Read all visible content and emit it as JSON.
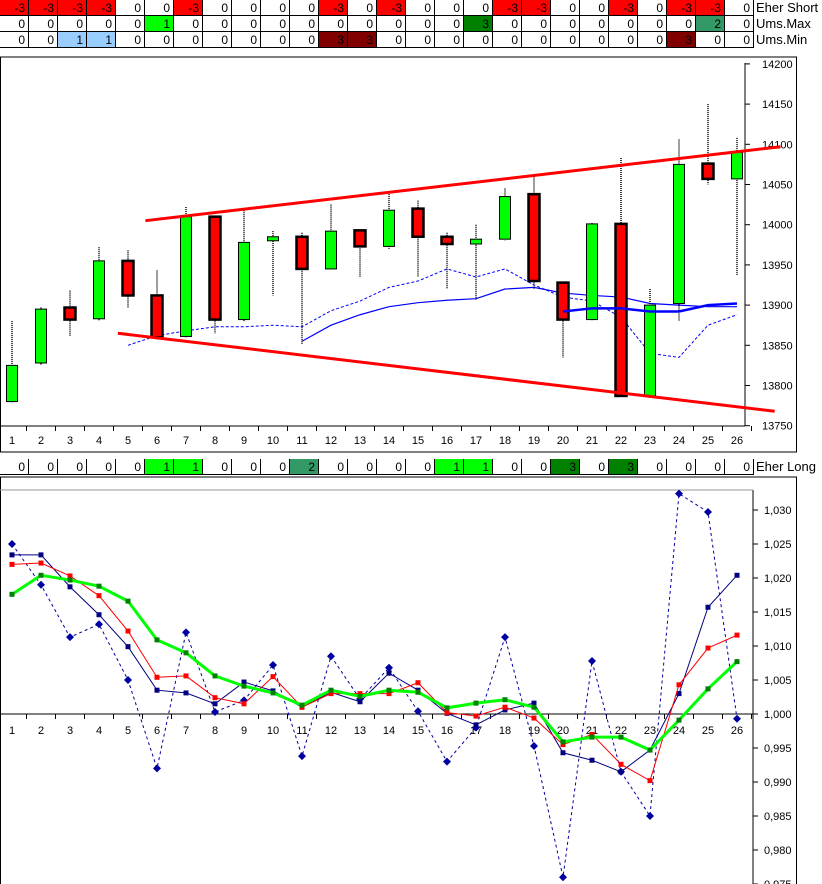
{
  "indicator_rows": [
    {
      "label": "Eher Short",
      "values": [
        -3,
        -3,
        -3,
        -3,
        0,
        0,
        -3,
        0,
        0,
        0,
        0,
        -3,
        0,
        -3,
        0,
        0,
        0,
        -3,
        -3,
        0,
        0,
        -3,
        0,
        -3,
        -3,
        0
      ],
      "colors": {
        "-3": "#ff0000"
      }
    },
    {
      "label": "Ums.Max",
      "values": [
        0,
        0,
        0,
        0,
        0,
        1,
        0,
        0,
        0,
        0,
        0,
        0,
        0,
        0,
        0,
        0,
        3,
        0,
        0,
        0,
        0,
        0,
        0,
        0,
        2,
        0
      ],
      "colors": {
        "1": "#00ff00",
        "2": "#339966",
        "3": "#008000"
      }
    },
    {
      "label": "Ums.Min",
      "values": [
        0,
        0,
        1,
        1,
        0,
        0,
        0,
        0,
        0,
        0,
        0,
        3,
        3,
        0,
        0,
        0,
        0,
        0,
        0,
        0,
        0,
        0,
        0,
        3,
        0,
        0
      ],
      "colors": {
        "1": "#99ccff",
        "3": "#800000"
      }
    }
  ],
  "long_row": {
    "label": "Eher Long",
    "values": [
      0,
      0,
      0,
      0,
      0,
      1,
      1,
      0,
      0,
      0,
      2,
      0,
      0,
      0,
      0,
      1,
      1,
      0,
      0,
      3,
      0,
      3,
      0,
      0,
      0,
      0
    ],
    "colors": {
      "1": "#00ff00",
      "2": "#339966",
      "3": "#008000"
    }
  },
  "chart_data": [
    {
      "type": "candlestick",
      "x": [
        1,
        2,
        3,
        4,
        5,
        6,
        7,
        8,
        9,
        10,
        11,
        12,
        13,
        14,
        15,
        16,
        17,
        18,
        19,
        20,
        21,
        22,
        23,
        24,
        25,
        26
      ],
      "x_tick_labels": [
        "1",
        "2",
        "3",
        "4",
        "5",
        "6",
        "7",
        "8",
        "9",
        "10",
        "11",
        "12",
        "13",
        "14",
        "15",
        "16",
        "17",
        "18",
        "19",
        "20",
        "21",
        "22",
        "23",
        "24",
        "25",
        "26"
      ],
      "ylim": [
        13750,
        14200
      ],
      "y_ticks": [
        13750,
        13800,
        13850,
        13900,
        13950,
        14000,
        14050,
        14100,
        14150,
        14200
      ],
      "y_tick_labels": [
        "13750",
        "13800",
        "13850",
        "13900",
        "13950",
        "14000",
        "14050",
        "14100",
        "14150",
        "14200"
      ],
      "open": [
        13780,
        13828,
        13897,
        13883,
        13955,
        13912,
        13861,
        14010,
        13882,
        13980,
        13985,
        13945,
        13993,
        13973,
        14020,
        13985,
        13976,
        13982,
        14038,
        13928,
        13882,
        14001,
        13787,
        13902,
        14076,
        14057
      ],
      "close": [
        13825,
        13895,
        13882,
        13955,
        13912,
        13860,
        14010,
        13882,
        13978,
        13985,
        13945,
        13992,
        13973,
        14018,
        13985,
        13976,
        13982,
        14035,
        13930,
        13882,
        14001,
        13787,
        13900,
        14075,
        14057,
        14090
      ],
      "high": [
        13880,
        13897,
        13918,
        13972,
        13968,
        13943,
        14022,
        14010,
        14018,
        13992,
        13990,
        14025,
        13993,
        14038,
        14030,
        13990,
        14000,
        14045,
        14060,
        13928,
        14002,
        14083,
        13920,
        14106,
        14150,
        14108
      ],
      "low": [
        13778,
        13826,
        13862,
        13880,
        13897,
        13857,
        13860,
        13865,
        13880,
        13912,
        13852,
        13945,
        13935,
        13970,
        13935,
        13920,
        13907,
        13980,
        13920,
        13835,
        13880,
        13785,
        13785,
        13880,
        14050,
        13937
      ],
      "ma_dashed": {
        "x": [
          5,
          6,
          7,
          8,
          9,
          10,
          11,
          12,
          13,
          14,
          15,
          16,
          17,
          18,
          19,
          20,
          21,
          22,
          23,
          24,
          25,
          26
        ],
        "values": [
          13850,
          13862,
          13868,
          13873,
          13873,
          13875,
          13873,
          13893,
          13905,
          13922,
          13930,
          13945,
          13935,
          13945,
          13925,
          13910,
          13905,
          13885,
          13840,
          13835,
          13875,
          13888
        ],
        "color": "#0000ff"
      },
      "ma_solid": {
        "x": [
          11,
          12,
          13,
          14,
          15,
          16,
          17,
          18,
          19,
          20,
          21,
          22,
          23,
          24,
          25,
          26
        ],
        "values": [
          13855,
          13875,
          13888,
          13898,
          13903,
          13906,
          13908,
          13920,
          13922,
          13915,
          13912,
          13910,
          13902,
          13900,
          13898,
          13898
        ],
        "color": "#0000ff"
      },
      "ma_thick": {
        "x": [
          20,
          21,
          22,
          23,
          24,
          25,
          26
        ],
        "values": [
          13892,
          13896,
          13896,
          13892,
          13892,
          13900,
          13902
        ],
        "color": "#0000ff"
      },
      "trend_upper": {
        "x": [
          5.6,
          27.5
        ],
        "values": [
          14005,
          14097
        ],
        "color": "#ff0000"
      },
      "trend_lower": {
        "x": [
          4.65,
          27.3
        ],
        "values": [
          13865,
          13768
        ],
        "color": "#ff0000"
      }
    },
    {
      "type": "line",
      "x": [
        1,
        2,
        3,
        4,
        5,
        6,
        7,
        8,
        9,
        10,
        11,
        12,
        13,
        14,
        15,
        16,
        17,
        18,
        19,
        20,
        21,
        22,
        23,
        24,
        25,
        26
      ],
      "x_tick_labels": [
        "1",
        "2",
        "3",
        "4",
        "5",
        "6",
        "7",
        "8",
        "9",
        "10",
        "11",
        "12",
        "13",
        "14",
        "15",
        "16",
        "17",
        "18",
        "19",
        "20",
        "21",
        "22",
        "23",
        "24",
        "25",
        "26"
      ],
      "ylim": [
        0.975,
        1.032
      ],
      "y_ticks": [
        0.975,
        0.98,
        0.985,
        0.99,
        0.995,
        1.0,
        1.005,
        1.01,
        1.015,
        1.02,
        1.025,
        1.03
      ],
      "y_tick_labels": [
        "0,975",
        "0,980",
        "0,985",
        "0,990",
        "0,995",
        "1,000",
        "1,005",
        "1,010",
        "1,015",
        "1,020",
        "1,025",
        "1,030"
      ],
      "series": [
        {
          "name": "dashed-diamond",
          "color": "#0000a0",
          "values": [
            1.025,
            1.019,
            1.0113,
            1.0132,
            1.005,
            0.992,
            1.012,
            1.0003,
            1.002,
            1.0072,
            0.9938,
            1.0085,
            1.0022,
            1.0068,
            1.0004,
            0.993,
            0.998,
            1.0113,
            0.9953,
            0.976,
            1.0078,
            0.9915,
            0.985,
            1.0324,
            1.0297,
            0.9993
          ]
        },
        {
          "name": "navy-square",
          "color": "#000080",
          "values": [
            1.0234,
            1.0234,
            1.0187,
            1.0146,
            1.0099,
            1.0035,
            1.0031,
            1.0015,
            1.0047,
            1.0034,
            1.001,
            1.0032,
            1.0018,
            1.006,
            1.0035,
            1.0001,
            0.9984,
            1.0006,
            1.0016,
            0.9943,
            0.9932,
            0.9915,
            0.9947,
            1.003,
            1.0157,
            1.0204
          ]
        },
        {
          "name": "red-square",
          "color": "#ff0000",
          "values": [
            1.022,
            1.0222,
            1.0203,
            1.0174,
            1.0122,
            1.0054,
            1.0056,
            1.0024,
            1.0015,
            1.0055,
            1.001,
            1.003,
            1.003,
            1.003,
            1.0046,
            1.0002,
            0.9997,
            1.001,
            0.9994,
            0.9955,
            0.997,
            0.9926,
            0.9902,
            1.0043,
            1.0097,
            1.0116
          ]
        },
        {
          "name": "green-thick",
          "color": "#00ff00",
          "values": [
            1.0176,
            1.0204,
            1.0197,
            1.0188,
            1.0166,
            1.0109,
            1.009,
            1.0056,
            1.0041,
            1.0031,
            1.0013,
            1.0035,
            1.0026,
            1.0035,
            1.0032,
            1.0009,
            1.0016,
            1.0021,
            1.001,
            0.9959,
            0.9966,
            0.9966,
            0.9947,
            0.9991,
            1.0037,
            1.0077
          ]
        }
      ]
    }
  ]
}
